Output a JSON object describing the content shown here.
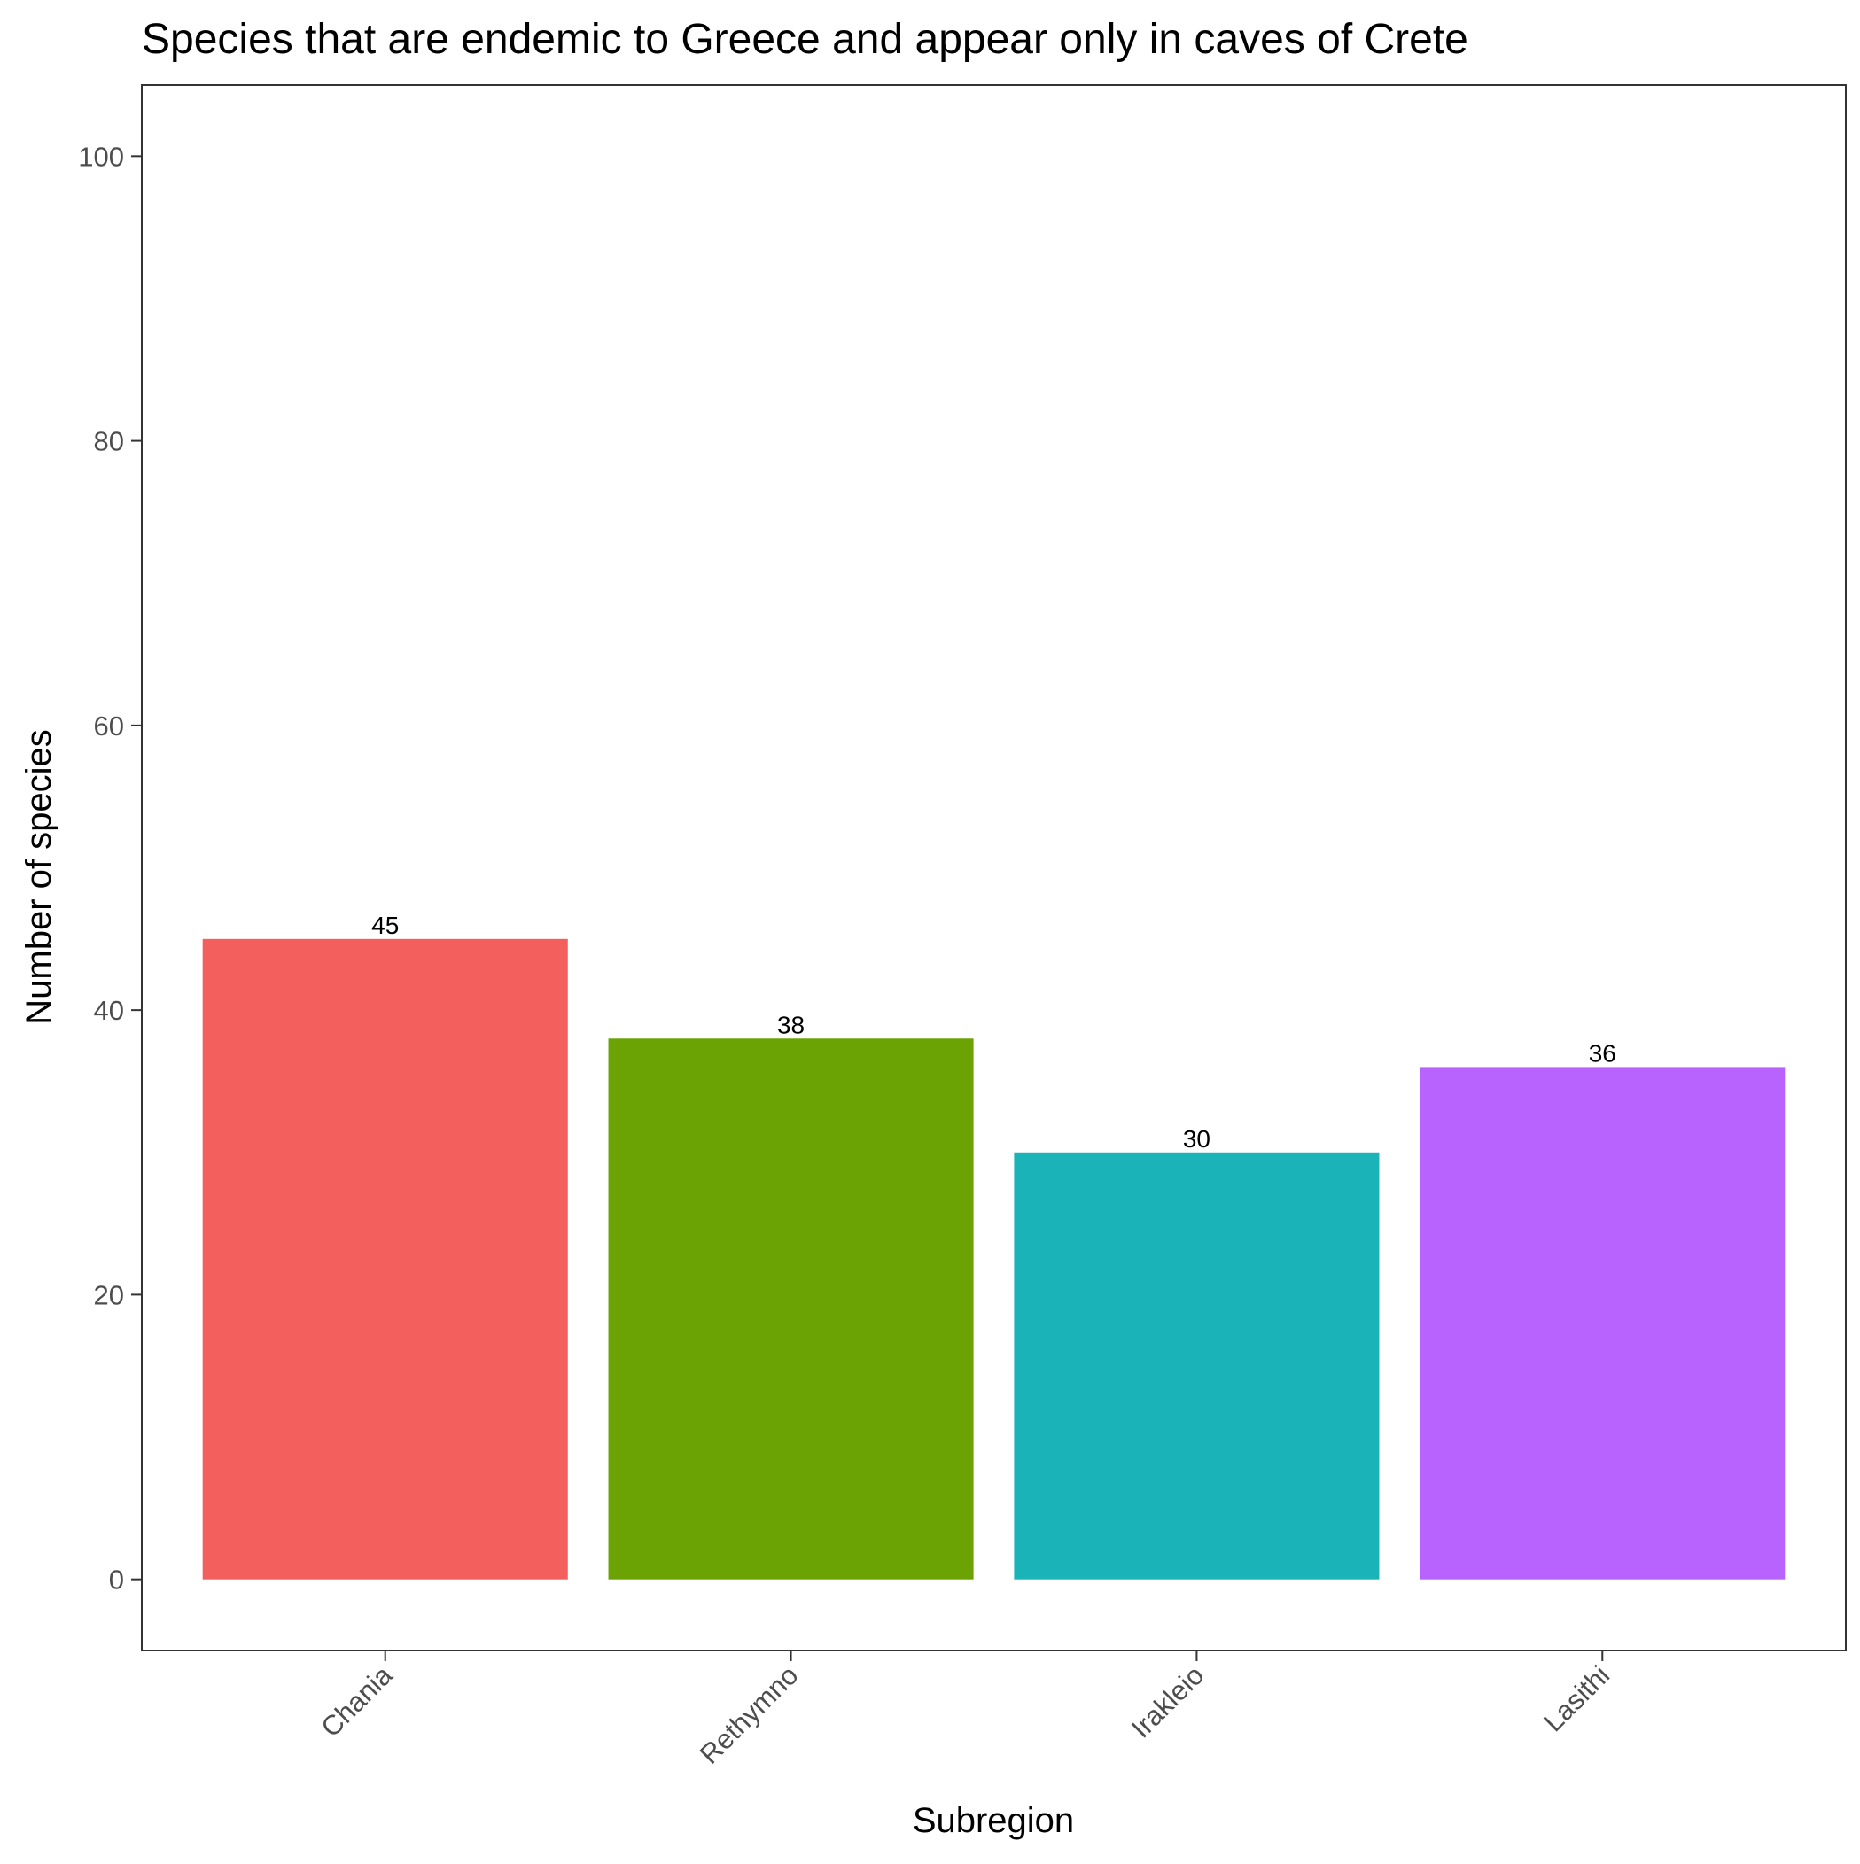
{
  "chart_data": {
    "type": "bar",
    "title": "Species that are endemic to Greece and appear only in caves of Crete",
    "xlabel": "Subregion",
    "ylabel": "Number of species",
    "categories": [
      "Chania",
      "Rethymno",
      "Irakleio",
      "Lasithi"
    ],
    "values": [
      45,
      38,
      30,
      36
    ],
    "data_labels": [
      "45",
      "38",
      "30",
      "36"
    ],
    "colors": [
      "#F25F5C",
      "#6BA305",
      "#19B3B8",
      "#B963FF"
    ],
    "ylim": [
      -5,
      105
    ],
    "yticks": [
      0,
      20,
      40,
      60,
      80,
      100
    ],
    "ytick_labels": [
      "0",
      "20",
      "40",
      "60",
      "80",
      "100"
    ],
    "grid": false,
    "legend": "none",
    "x_tick_rotation_deg": -45
  }
}
